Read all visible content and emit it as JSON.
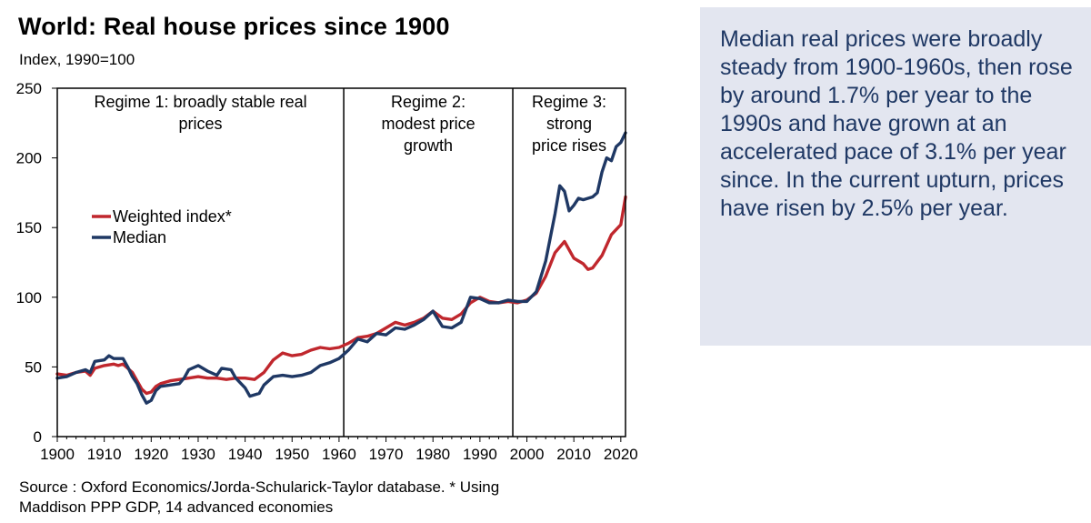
{
  "header": {
    "title": "World: Real house prices since 1900",
    "subtitle": "Index, 1990=100"
  },
  "footer": {
    "source_line1": "Source : Oxford Economics/Jorda-Schularick-Taylor database.  * Using",
    "source_line2": "Maddison PPP GDP, 14 advanced economies"
  },
  "note": {
    "text": "Median real prices were broadly steady from 1900-1960s, then rose by around 1.7% per year to the 1990s and have grown at an accelerated pace of 3.1% per year since. In the current upturn, prices have risen by 2.5% per year."
  },
  "colors": {
    "weighted": "#c0272d",
    "median": "#1f3864",
    "note_bg": "#e3e6f0",
    "note_text": "#1f3864"
  },
  "chart_data": {
    "type": "line",
    "xlim": [
      1900,
      2021
    ],
    "ylim": [
      0,
      250
    ],
    "xticks": [
      1900,
      1910,
      1920,
      1930,
      1940,
      1950,
      1960,
      1970,
      1980,
      1990,
      2000,
      2010,
      2020
    ],
    "yticks": [
      0,
      50,
      100,
      150,
      200,
      250
    ],
    "grid": false,
    "legend_position": "left-middle",
    "regimes": [
      {
        "label_lines": [
          "Regime 1: broadly stable real",
          "prices"
        ],
        "start": 1900,
        "end": 1961
      },
      {
        "label_lines": [
          "Regime 2:",
          "modest price",
          "growth"
        ],
        "start": 1961,
        "end": 1997
      },
      {
        "label_lines": [
          "Regime 3:",
          "strong",
          "price rises"
        ],
        "start": 1997,
        "end": 2021
      }
    ],
    "regime_dividers": [
      1961,
      1997
    ],
    "series": [
      {
        "name": "Weighted index*",
        "color": "#c0272d",
        "points": [
          [
            1900,
            45
          ],
          [
            1902,
            44
          ],
          [
            1904,
            46
          ],
          [
            1906,
            47
          ],
          [
            1907,
            44
          ],
          [
            1908,
            49
          ],
          [
            1910,
            51
          ],
          [
            1912,
            52
          ],
          [
            1913,
            51
          ],
          [
            1914,
            52
          ],
          [
            1915,
            49
          ],
          [
            1916,
            46
          ],
          [
            1917,
            40
          ],
          [
            1918,
            34
          ],
          [
            1919,
            31
          ],
          [
            1920,
            32
          ],
          [
            1921,
            36
          ],
          [
            1922,
            38
          ],
          [
            1924,
            40
          ],
          [
            1926,
            41
          ],
          [
            1928,
            42
          ],
          [
            1930,
            43
          ],
          [
            1932,
            42
          ],
          [
            1934,
            42
          ],
          [
            1936,
            41
          ],
          [
            1938,
            42
          ],
          [
            1940,
            42
          ],
          [
            1942,
            41
          ],
          [
            1944,
            46
          ],
          [
            1946,
            55
          ],
          [
            1948,
            60
          ],
          [
            1950,
            58
          ],
          [
            1952,
            59
          ],
          [
            1954,
            62
          ],
          [
            1956,
            64
          ],
          [
            1958,
            63
          ],
          [
            1960,
            64
          ],
          [
            1962,
            67
          ],
          [
            1964,
            71
          ],
          [
            1966,
            72
          ],
          [
            1968,
            74
          ],
          [
            1970,
            78
          ],
          [
            1972,
            82
          ],
          [
            1974,
            80
          ],
          [
            1976,
            82
          ],
          [
            1978,
            85
          ],
          [
            1980,
            90
          ],
          [
            1982,
            85
          ],
          [
            1984,
            84
          ],
          [
            1986,
            88
          ],
          [
            1988,
            96
          ],
          [
            1990,
            100
          ],
          [
            1992,
            97
          ],
          [
            1994,
            96
          ],
          [
            1996,
            97
          ],
          [
            1998,
            96
          ],
          [
            2000,
            98
          ],
          [
            2002,
            103
          ],
          [
            2004,
            115
          ],
          [
            2006,
            132
          ],
          [
            2008,
            140
          ],
          [
            2010,
            128
          ],
          [
            2012,
            124
          ],
          [
            2013,
            120
          ],
          [
            2014,
            121
          ],
          [
            2016,
            130
          ],
          [
            2018,
            145
          ],
          [
            2020,
            152
          ],
          [
            2021,
            172
          ]
        ]
      },
      {
        "name": "Median",
        "color": "#1f3864",
        "points": [
          [
            1900,
            42
          ],
          [
            1902,
            43
          ],
          [
            1904,
            46
          ],
          [
            1906,
            48
          ],
          [
            1907,
            46
          ],
          [
            1908,
            54
          ],
          [
            1910,
            55
          ],
          [
            1911,
            58
          ],
          [
            1912,
            56
          ],
          [
            1914,
            56
          ],
          [
            1915,
            50
          ],
          [
            1916,
            43
          ],
          [
            1917,
            38
          ],
          [
            1918,
            30
          ],
          [
            1919,
            24
          ],
          [
            1920,
            26
          ],
          [
            1921,
            33
          ],
          [
            1922,
            36
          ],
          [
            1924,
            37
          ],
          [
            1926,
            38
          ],
          [
            1927,
            42
          ],
          [
            1928,
            48
          ],
          [
            1930,
            51
          ],
          [
            1932,
            47
          ],
          [
            1934,
            44
          ],
          [
            1935,
            49
          ],
          [
            1937,
            48
          ],
          [
            1938,
            42
          ],
          [
            1940,
            35
          ],
          [
            1941,
            29
          ],
          [
            1943,
            31
          ],
          [
            1944,
            37
          ],
          [
            1946,
            43
          ],
          [
            1948,
            44
          ],
          [
            1950,
            43
          ],
          [
            1952,
            44
          ],
          [
            1954,
            46
          ],
          [
            1956,
            51
          ],
          [
            1958,
            53
          ],
          [
            1960,
            56
          ],
          [
            1962,
            62
          ],
          [
            1964,
            70
          ],
          [
            1966,
            68
          ],
          [
            1968,
            74
          ],
          [
            1970,
            73
          ],
          [
            1972,
            78
          ],
          [
            1974,
            77
          ],
          [
            1976,
            80
          ],
          [
            1978,
            84
          ],
          [
            1980,
            90
          ],
          [
            1982,
            79
          ],
          [
            1984,
            78
          ],
          [
            1986,
            82
          ],
          [
            1988,
            100
          ],
          [
            1990,
            99
          ],
          [
            1992,
            96
          ],
          [
            1994,
            96
          ],
          [
            1996,
            98
          ],
          [
            1998,
            97
          ],
          [
            2000,
            97
          ],
          [
            2002,
            104
          ],
          [
            2004,
            126
          ],
          [
            2006,
            160
          ],
          [
            2007,
            180
          ],
          [
            2008,
            176
          ],
          [
            2009,
            162
          ],
          [
            2010,
            166
          ],
          [
            2011,
            171
          ],
          [
            2012,
            170
          ],
          [
            2014,
            172
          ],
          [
            2015,
            175
          ],
          [
            2016,
            190
          ],
          [
            2017,
            200
          ],
          [
            2018,
            198
          ],
          [
            2019,
            208
          ],
          [
            2020,
            211
          ],
          [
            2021,
            218
          ]
        ]
      }
    ]
  }
}
